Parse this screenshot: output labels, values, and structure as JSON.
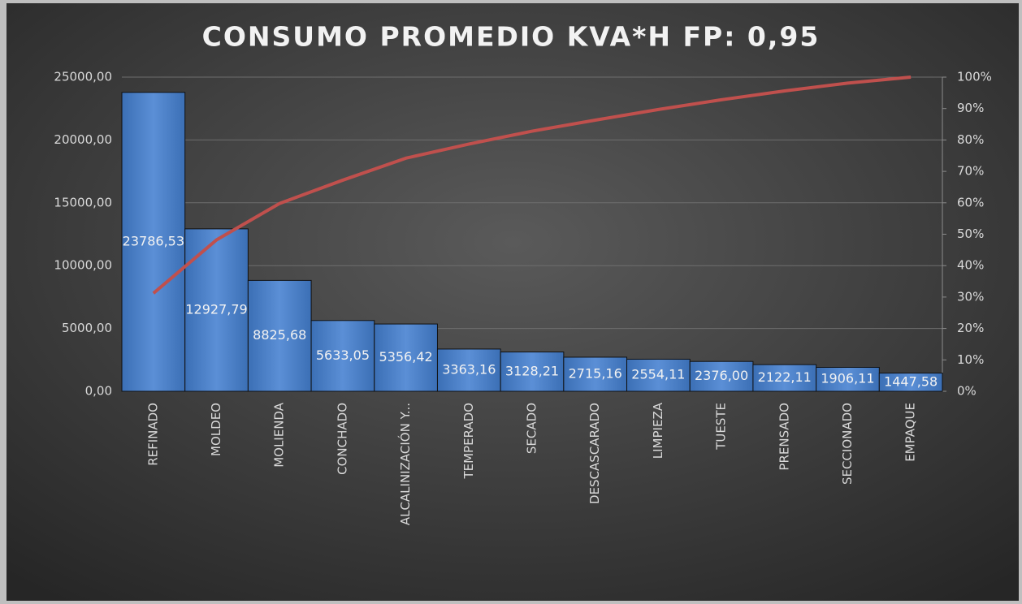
{
  "chart_data": {
    "type": "pareto",
    "title": "CONSUMO PROMEDIO KVA*H FP: 0,95",
    "categories": [
      "REFINADO",
      "MOLDEO",
      "MOLIENDA",
      "CONCHADO",
      "ALCALINIZACIÓN Y...",
      "TEMPERADO",
      "SECADO",
      "DESCASCARADO",
      "LIMPIEZA",
      "TUESTE",
      "PRENSADO",
      "SECCIONADO",
      "EMPAQUE"
    ],
    "series": [
      {
        "type": "bar",
        "color": "#4f81bd",
        "values": [
          23786.53,
          12927.79,
          8825.68,
          5633.05,
          5356.42,
          3363.16,
          3128.21,
          2715.16,
          2554.11,
          2376.0,
          2122.11,
          1906.11,
          1447.58
        ],
        "value_labels": [
          "23786,53",
          "12927,79",
          "8825,68",
          "5633,05",
          "5356,42",
          "3363,16",
          "3128,21",
          "2715,16",
          "2554,11",
          "2376,00",
          "2122,11",
          "1906,11",
          "1447,58"
        ]
      },
      {
        "type": "line",
        "axis": "y2",
        "color": "#c0504d",
        "values": [
          31.2,
          48.2,
          59.8,
          67.2,
          74.2,
          78.7,
          82.8,
          86.3,
          89.7,
          92.8,
          95.6,
          98.1,
          100
        ]
      }
    ],
    "ylim": [
      0,
      25000
    ],
    "yticks": [
      {
        "value": 0,
        "label": "0,00"
      },
      {
        "value": 5000,
        "label": "5000,00"
      },
      {
        "value": 10000,
        "label": "10000,00"
      },
      {
        "value": 15000,
        "label": "15000,00"
      },
      {
        "value": 20000,
        "label": "20000,00"
      },
      {
        "value": 25000,
        "label": "25000,00"
      }
    ],
    "y2lim": [
      0,
      100
    ],
    "y2ticks": [
      {
        "value": 0,
        "label": "0%"
      },
      {
        "value": 10,
        "label": "10%"
      },
      {
        "value": 20,
        "label": "20%"
      },
      {
        "value": 30,
        "label": "30%"
      },
      {
        "value": 40,
        "label": "40%"
      },
      {
        "value": 50,
        "label": "50%"
      },
      {
        "value": 60,
        "label": "60%"
      },
      {
        "value": 70,
        "label": "70%"
      },
      {
        "value": 80,
        "label": "80%"
      },
      {
        "value": 90,
        "label": "90%"
      },
      {
        "value": 100,
        "label": "100%"
      }
    ],
    "grid": true
  }
}
